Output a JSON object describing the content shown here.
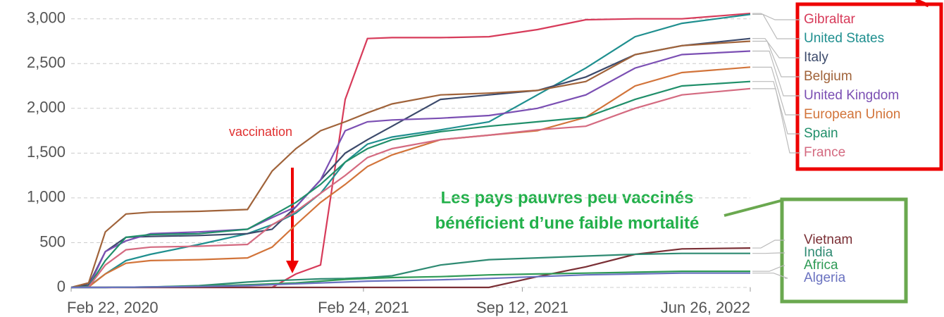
{
  "chart_data": {
    "type": "line",
    "x": [
      "2020-02-22",
      "2020-03-15",
      "2020-04-05",
      "2020-05-01",
      "2020-06-01",
      "2020-08-01",
      "2020-10-01",
      "2020-11-01",
      "2020-12-01",
      "2021-01-01",
      "2021-02-01",
      "2021-03-01",
      "2021-04-01",
      "2021-06-01",
      "2021-08-01",
      "2021-10-01",
      "2021-12-01",
      "2022-02-01",
      "2022-04-01",
      "2022-06-26"
    ],
    "xlim": [
      "2020-02-22",
      "2022-06-26"
    ],
    "xticks": [
      {
        "value": "2020-02-22",
        "label": "Feb 22, 2020"
      },
      {
        "value": "2021-02-24",
        "label": "Feb 24, 2021"
      },
      {
        "value": "2021-09-12",
        "label": "Sep 12, 2021"
      },
      {
        "value": "2022-06-26",
        "label": "Jun 26, 2022"
      }
    ],
    "ylim": [
      0,
      3100
    ],
    "yticks": [
      0,
      {
        "value": 500,
        "label": "500"
      },
      {
        "value": 1000,
        "label": "1,000"
      },
      {
        "value": 1500,
        "label": "1,500"
      },
      {
        "value": 2000,
        "label": "2,000"
      },
      {
        "value": 2500,
        "label": "2,500"
      },
      {
        "value": 3000,
        "label": "3,000"
      }
    ],
    "grid": true,
    "series": [
      {
        "name": "Gibraltar",
        "color": "#d73b5a",
        "values": [
          0,
          0,
          0,
          0,
          0,
          0,
          0,
          0,
          150,
          250,
          2100,
          2780,
          2790,
          2790,
          2800,
          2880,
          2990,
          3000,
          3000,
          3060
        ]
      },
      {
        "name": "United States",
        "color": "#1f8f8f",
        "values": [
          0,
          10,
          150,
          300,
          370,
          480,
          600,
          700,
          830,
          1050,
          1400,
          1600,
          1680,
          1760,
          1850,
          2150,
          2450,
          2800,
          2950,
          3050
        ]
      },
      {
        "name": "Italy",
        "color": "#3c4a6b",
        "values": [
          0,
          30,
          400,
          560,
          570,
          580,
          600,
          650,
          900,
          1200,
          1500,
          1650,
          1800,
          2100,
          2150,
          2200,
          2350,
          2600,
          2700,
          2780
        ]
      },
      {
        "name": "Belgium",
        "color": "#a0633a",
        "values": [
          0,
          50,
          620,
          820,
          840,
          850,
          870,
          1300,
          1550,
          1750,
          1850,
          1950,
          2050,
          2150,
          2170,
          2200,
          2300,
          2600,
          2700,
          2750
        ]
      },
      {
        "name": "United Kingdom",
        "color": "#7b4fb3",
        "values": [
          0,
          5,
          400,
          520,
          600,
          620,
          650,
          780,
          900,
          1200,
          1750,
          1850,
          1870,
          1890,
          1920,
          2000,
          2150,
          2450,
          2600,
          2640
        ]
      },
      {
        "name": "European Union",
        "color": "#d2743a",
        "values": [
          0,
          5,
          150,
          270,
          300,
          310,
          330,
          450,
          700,
          950,
          1150,
          1350,
          1480,
          1650,
          1700,
          1750,
          1900,
          2250,
          2400,
          2460
        ]
      },
      {
        "name": "Spain",
        "color": "#208f6a",
        "values": [
          0,
          10,
          300,
          560,
          590,
          600,
          650,
          800,
          950,
          1150,
          1400,
          1550,
          1650,
          1740,
          1800,
          1850,
          1900,
          2100,
          2250,
          2300
        ]
      },
      {
        "name": "France",
        "color": "#d46a80",
        "values": [
          0,
          5,
          250,
          420,
          450,
          460,
          480,
          700,
          850,
          1050,
          1250,
          1450,
          1550,
          1650,
          1700,
          1760,
          1800,
          2000,
          2150,
          2220
        ]
      },
      {
        "name": "Vietnam",
        "color": "#7a2f35",
        "values": [
          0,
          0,
          0,
          0,
          0,
          0,
          0,
          0,
          0,
          0,
          0,
          0,
          0,
          0,
          0,
          120,
          230,
          370,
          430,
          440
        ]
      },
      {
        "name": "India",
        "color": "#2e8a72",
        "values": [
          0,
          0,
          0,
          2,
          5,
          20,
          60,
          75,
          85,
          95,
          100,
          110,
          130,
          250,
          310,
          330,
          350,
          370,
          380,
          380
        ]
      },
      {
        "name": "Africa",
        "color": "#2e9a55",
        "values": [
          0,
          0,
          0,
          2,
          5,
          15,
          30,
          40,
          50,
          70,
          90,
          100,
          110,
          120,
          140,
          150,
          160,
          170,
          180,
          180
        ]
      },
      {
        "name": "Algeria",
        "color": "#6a72c0",
        "values": [
          0,
          0,
          0,
          2,
          5,
          10,
          20,
          30,
          40,
          50,
          60,
          70,
          75,
          85,
          100,
          120,
          140,
          150,
          160,
          160
        ]
      }
    ],
    "annotations": [
      "vaccination",
      "Les pays pauvres peu vaccinés",
      "bénéficient d’une faible mortalité"
    ]
  }
}
